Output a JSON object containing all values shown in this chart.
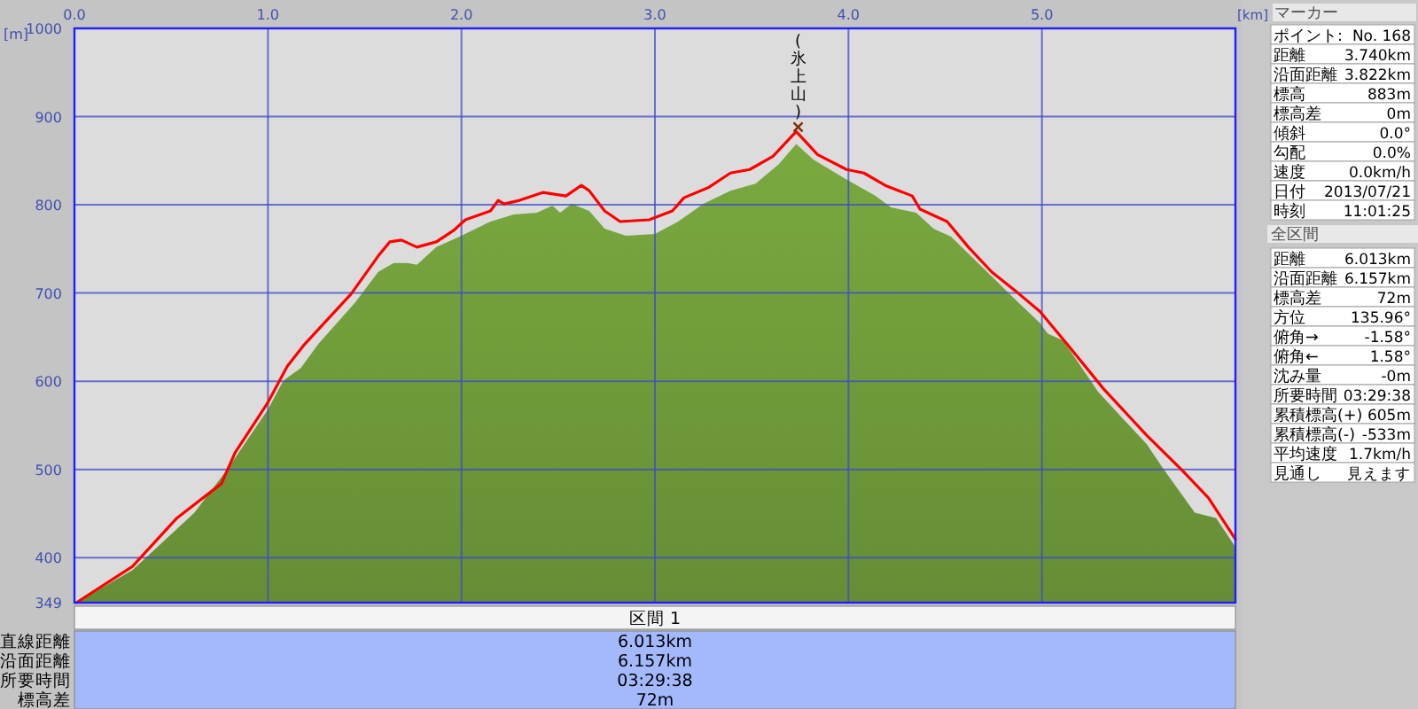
{
  "chart_data": {
    "type": "area",
    "xlabel": "[km]",
    "ylabel": "[m]",
    "xlim": [
      0,
      6
    ],
    "ylim": [
      349,
      1000
    ],
    "xticks": [
      {
        "value": 0,
        "label": "0.0"
      },
      {
        "value": 1,
        "label": "1.0"
      },
      {
        "value": 2,
        "label": "2.0"
      },
      {
        "value": 3,
        "label": "3.0"
      },
      {
        "value": 4,
        "label": "4.0"
      },
      {
        "value": 5,
        "label": "5.0"
      }
    ],
    "yticks": [
      349,
      400,
      500,
      600,
      700,
      800,
      900,
      1000
    ],
    "grid": true,
    "series": [
      {
        "type": "area",
        "color": "#74a03c",
        "x": [
          0.01,
          0.3,
          0.62,
          0.79,
          1.0,
          1.08,
          1.17,
          1.26,
          1.45,
          1.57,
          1.65,
          1.72,
          1.77,
          1.87,
          1.99,
          2.15,
          2.27,
          2.39,
          2.47,
          2.51,
          2.57,
          2.66,
          2.74,
          2.85,
          3.0,
          3.12,
          3.25,
          3.39,
          3.52,
          3.64,
          3.73,
          3.82,
          3.98,
          4.14,
          4.22,
          4.35,
          4.44,
          4.53,
          4.74,
          4.86,
          4.99,
          5.03,
          5.11,
          5.29,
          5.54,
          5.63,
          5.79,
          5.9,
          6.0
        ],
        "values": [
          349,
          386,
          451,
          500,
          568,
          601,
          615,
          642,
          689,
          724,
          734,
          734,
          732,
          752,
          764,
          781,
          789,
          791,
          799,
          791,
          801,
          793,
          773,
          765,
          767,
          781,
          801,
          816,
          824,
          846,
          869,
          851,
          830,
          810,
          797,
          791,
          773,
          764,
          719,
          693,
          666,
          654,
          646,
          588,
          529,
          500,
          451,
          445,
          412
        ]
      },
      {
        "type": "line",
        "color": "#ff0000",
        "x": [
          0.01,
          0.3,
          0.53,
          0.76,
          0.83,
          1.0,
          1.1,
          1.19,
          1.43,
          1.57,
          1.63,
          1.69,
          1.77,
          1.87,
          1.96,
          2.02,
          2.15,
          2.19,
          2.22,
          2.3,
          2.42,
          2.54,
          2.62,
          2.66,
          2.74,
          2.82,
          2.97,
          3.09,
          3.15,
          3.28,
          3.39,
          3.49,
          3.61,
          3.73,
          3.84,
          3.99,
          4.08,
          4.19,
          4.33,
          4.37,
          4.51,
          4.62,
          4.74,
          4.86,
          4.99,
          5.13,
          5.32,
          5.54,
          5.72,
          5.86,
          6.0
        ],
        "values": [
          349,
          390,
          445,
          484,
          519,
          576,
          617,
          642,
          699,
          742,
          758,
          760,
          752,
          758,
          771,
          783,
          793,
          805,
          801,
          805,
          814,
          810,
          822,
          816,
          793,
          781,
          783,
          793,
          808,
          820,
          836,
          840,
          855,
          883,
          857,
          840,
          836,
          822,
          810,
          795,
          781,
          752,
          724,
          703,
          679,
          642,
          591,
          539,
          500,
          468,
          421
        ]
      }
    ],
    "annotations": [
      {
        "text": "(氷上山)",
        "x": 3.74,
        "y": 883
      },
      "マーカー",
      "ポイント:",
      "No. 168",
      "距離",
      "3.740km",
      "沿面距離",
      "3.822km",
      "標高",
      "883m",
      "標高差",
      "0m",
      "傾斜",
      "0.0°",
      "勾配",
      "0.0%",
      "速度",
      "0.0km/h",
      "日付",
      "2013/07/21",
      "時刻",
      "11:01:25",
      "全区間",
      "距離",
      "6.013km",
      "沿面距離",
      "6.157km",
      "標高差",
      "72m",
      "方位",
      "135.96°",
      "俯角→",
      "-1.58°",
      "俯角←",
      "1.58°",
      "沈み量",
      "-0m",
      "所要時間",
      "03:29:38",
      "累積標高(+)",
      "605m",
      "累積標高(-)",
      "-533m",
      "平均速度",
      "1.7km/h",
      "見通し",
      "見えます",
      "区間 1",
      "直線距離",
      "6.013km",
      "沿面距離",
      "6.157km",
      "所要時間",
      "03:29:38",
      "標高差",
      "72m"
    ]
  }
}
